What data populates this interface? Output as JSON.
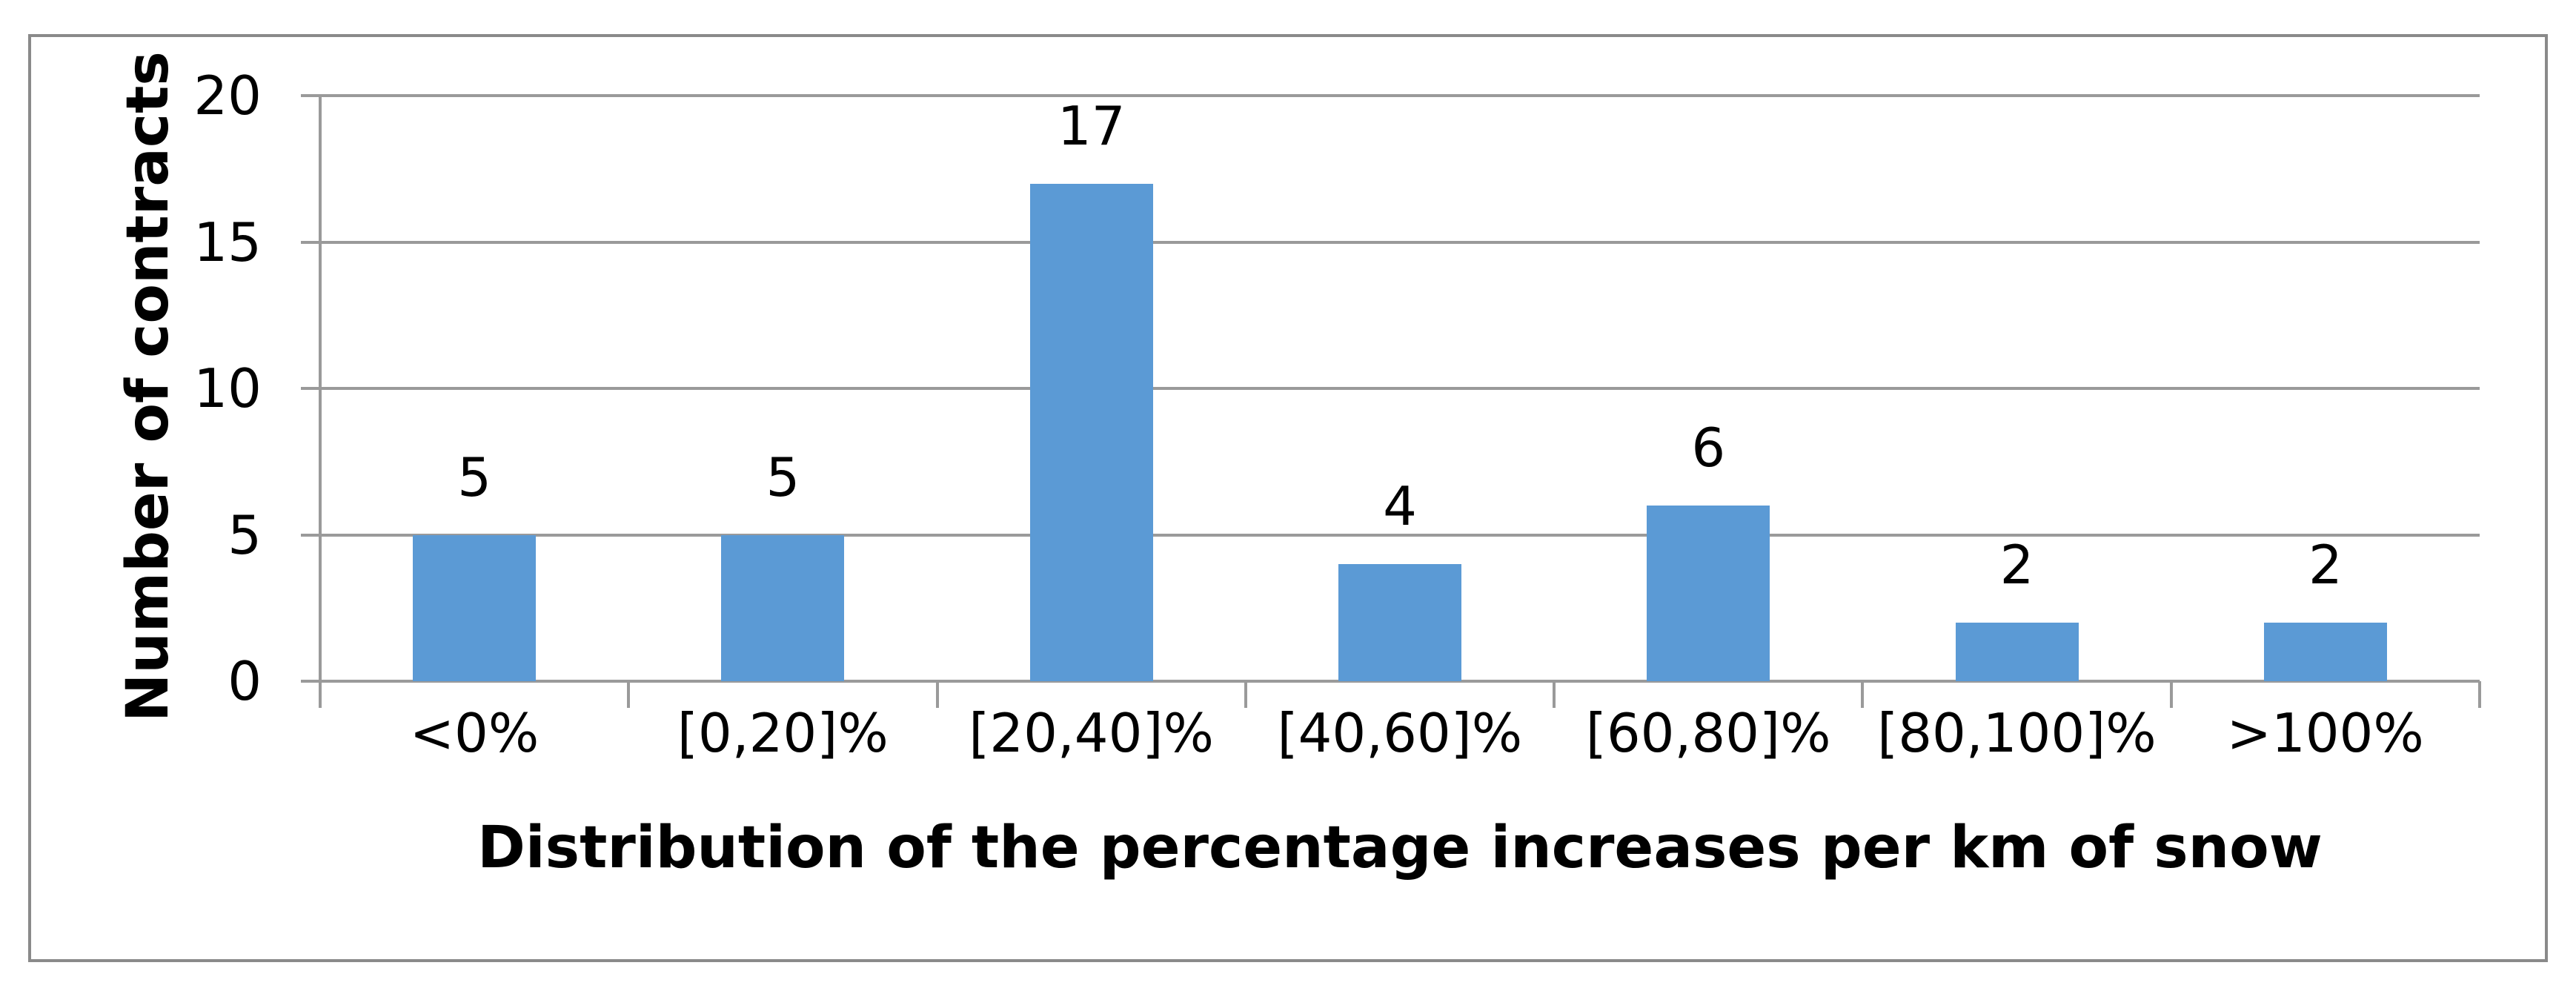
{
  "chart_data": {
    "type": "bar",
    "categories": [
      "<0%",
      "[0,20]%",
      "[20,40]%",
      "[40,60]%",
      "[60,80]%",
      "[80,100]%",
      ">100%"
    ],
    "values": [
      5,
      5,
      17,
      4,
      6,
      2,
      2
    ],
    "value_labels": [
      "5",
      "5",
      "17",
      "4",
      "6",
      "2",
      "2"
    ],
    "title": "",
    "xlabel": "Distribution of the percentage increases per km of snow",
    "ylabel": "Number of contracts",
    "ylim": [
      0,
      20
    ],
    "yticks": [
      0,
      5,
      10,
      15,
      20
    ],
    "grid": true,
    "legend_position": "none",
    "bar_color": "#5B9AD5",
    "gridline_color": "#9A9A9A",
    "frame_border_color": "#8A8A8A",
    "text_color": "#000000",
    "background_color": "#FFFFFF"
  }
}
